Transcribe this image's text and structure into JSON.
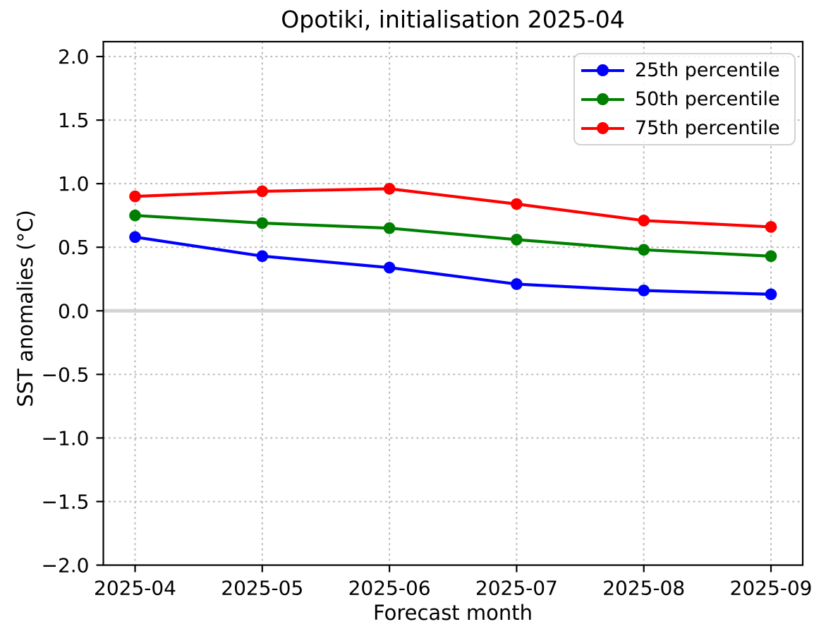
{
  "title": "Opotiki, initialisation 2025-04",
  "chart_data": {
    "type": "line",
    "title": "Opotiki, initialisation 2025-04",
    "xlabel": "Forecast month",
    "ylabel": "SST anomalies (°C)",
    "categories": [
      "2025-04",
      "2025-05",
      "2025-06",
      "2025-07",
      "2025-08",
      "2025-09"
    ],
    "series": [
      {
        "name": "25th percentile",
        "color": "#0000ff",
        "values": [
          0.58,
          0.43,
          0.34,
          0.21,
          0.16,
          0.13
        ]
      },
      {
        "name": "50th percentile",
        "color": "#008000",
        "values": [
          0.75,
          0.69,
          0.65,
          0.56,
          0.48,
          0.43
        ]
      },
      {
        "name": "75th percentile",
        "color": "#ff0000",
        "values": [
          0.9,
          0.94,
          0.96,
          0.84,
          0.71,
          0.66
        ]
      }
    ],
    "ylim": [
      -2.0,
      2.117
    ],
    "y_ticks": [
      2.0,
      1.5,
      1.0,
      0.5,
      0.0,
      -0.5,
      -1.0,
      -1.5,
      -2.0
    ],
    "grid": true,
    "grid_style": "dotted",
    "legend_position": "upper right",
    "zero_line": true,
    "colors": {
      "zero_line": "#d3d3d3",
      "grid": "#b8b8b8",
      "spine": "#000000",
      "text": "#000000",
      "legend_border": "#d2d2d2",
      "background": "#ffffff"
    }
  }
}
